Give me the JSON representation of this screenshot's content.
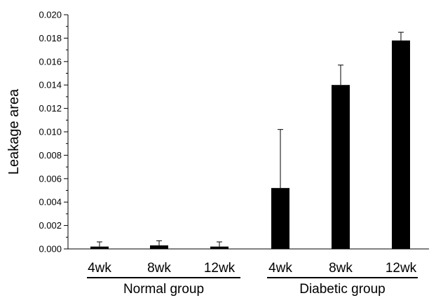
{
  "chart_data": {
    "type": "bar",
    "title": "",
    "xlabel": "",
    "ylabel": "Leakage area",
    "ylim": [
      0,
      0.02
    ],
    "yticks": [
      "0.000",
      "0.002",
      "0.004",
      "0.006",
      "0.008",
      "0.010",
      "0.012",
      "0.014",
      "0.016",
      "0.018",
      "0.020"
    ],
    "categories": [
      "4wk",
      "8wk",
      "12wk",
      "4wk",
      "8wk",
      "12wk"
    ],
    "values": [
      0.0002,
      0.0003,
      0.0002,
      0.0052,
      0.014,
      0.0178
    ],
    "error_upper": [
      0.0004,
      0.0004,
      0.0004,
      0.005,
      0.0017,
      0.0007
    ],
    "groups": [
      {
        "label": "Normal group",
        "members": [
          0,
          1,
          2
        ]
      },
      {
        "label": "Diabetic group",
        "members": [
          3,
          4,
          5
        ]
      }
    ],
    "bar_color": "#000000",
    "grid": false,
    "legend": "none"
  }
}
